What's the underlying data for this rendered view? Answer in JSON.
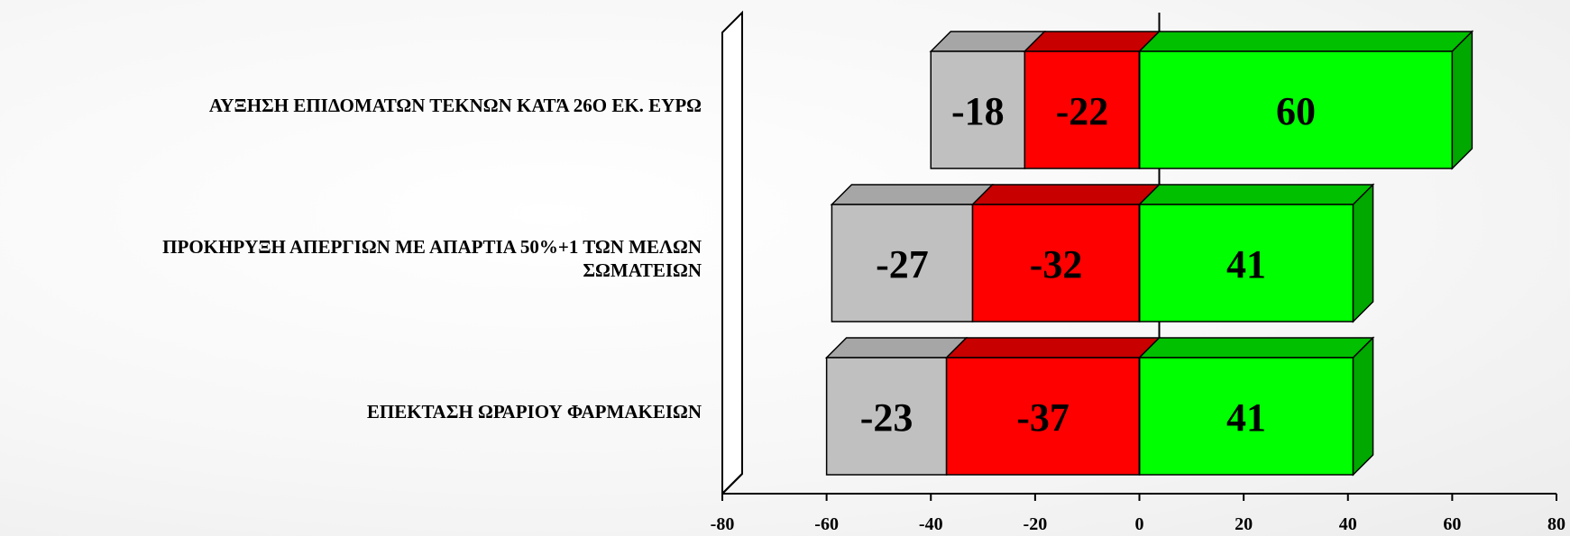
{
  "chart_data": {
    "type": "bar",
    "orientation": "horizontal",
    "stacked": true,
    "three_d": true,
    "categories": [
      "ΑΥΞΗΣΗ ΕΠΙΔΟΜΑΤΩΝ ΤΕΚΝΩΝ ΚΑΤΆ 26Ο ΕΚ. ΕΥΡΩ",
      "ΠΡΟΚΗΡΥΞΗ ΑΠΕΡΓΙΩΝ ΜΕ ΑΠΑΡΤΙΑ 50%+1 ΤΩΝ ΜΕΛΩΝ ΣΩΜΑΤΕΙΩΝ",
      "ΕΠΕΚΤΑΣΗ ΩΡΑΡΙΟΥ ΦΑΡΜΑΚΕΙΩΝ"
    ],
    "category_lines": [
      [
        "ΑΥΞΗΣΗ ΕΠΙΔΟΜΑΤΩΝ ΤΕΚΝΩΝ ΚΑΤΆ 26Ο ΕΚ. ΕΥΡΩ"
      ],
      [
        "ΠΡΟΚΗΡΥΞΗ ΑΠΕΡΓΙΩΝ ΜΕ ΑΠΑΡΤΙΑ 50%+1 ΤΩΝ ΜΕΛΩΝ",
        "ΣΩΜΑΤΕΙΩΝ"
      ],
      [
        "ΕΠΕΚΤΑΣΗ ΩΡΑΡΙΟΥ ΦΑΡΜΑΚΕΙΩΝ"
      ]
    ],
    "series": [
      {
        "values": [
          -18,
          -27,
          -23
        ],
        "color": "#c0c0c0",
        "side_color": "#8e8e8e",
        "top_color": "#a6a6a6"
      },
      {
        "values": [
          -22,
          -32,
          -37
        ],
        "color": "#ff0000",
        "side_color": "#b40000",
        "top_color": "#c80000"
      },
      {
        "values": [
          60,
          41,
          41
        ],
        "color": "#00ff00",
        "side_color": "#00a800",
        "top_color": "#00c000"
      }
    ],
    "xlim": [
      -80,
      80
    ],
    "xticks": [
      -80,
      -60,
      -40,
      -20,
      0,
      20,
      40,
      60,
      80
    ],
    "grid": false,
    "legend": "none",
    "title": "",
    "xlabel": "",
    "ylabel": ""
  }
}
